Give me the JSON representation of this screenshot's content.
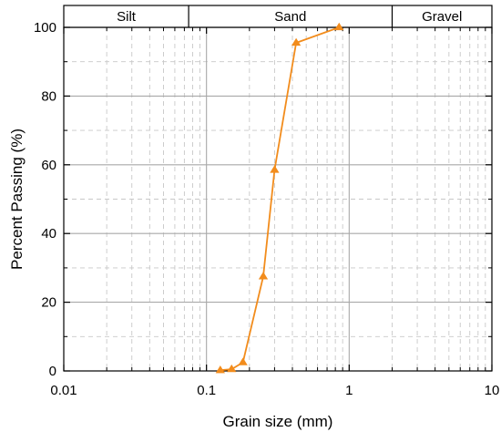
{
  "chart_data": {
    "type": "line",
    "xscale": "log",
    "xlim": [
      0.01,
      10
    ],
    "ylim": [
      0,
      100
    ],
    "xlabel": "Grain size (mm)",
    "ylabel": "Percent Passing (%)",
    "x_ticks": [
      0.01,
      0.1,
      1,
      10
    ],
    "x_tick_labels": [
      "0.01",
      "0.1",
      "1",
      "10"
    ],
    "y_ticks": [
      0,
      20,
      40,
      60,
      80,
      100
    ],
    "y_tick_labels": [
      "0",
      "20",
      "40",
      "60",
      "80",
      "100"
    ],
    "grid": true,
    "bands": [
      {
        "label": "Silt",
        "from": 0.01,
        "to": 0.075
      },
      {
        "label": "Sand",
        "from": 0.075,
        "to": 2
      },
      {
        "label": "Gravel",
        "from": 2,
        "to": 10
      }
    ],
    "series": [
      {
        "color": "#f28c1c",
        "marker": "triangle",
        "x": [
          0.125,
          0.15,
          0.18,
          0.25,
          0.3,
          0.425,
          0.85
        ],
        "y": [
          0.2,
          0.5,
          2.5,
          27.5,
          58.5,
          95.5,
          100
        ]
      }
    ]
  }
}
